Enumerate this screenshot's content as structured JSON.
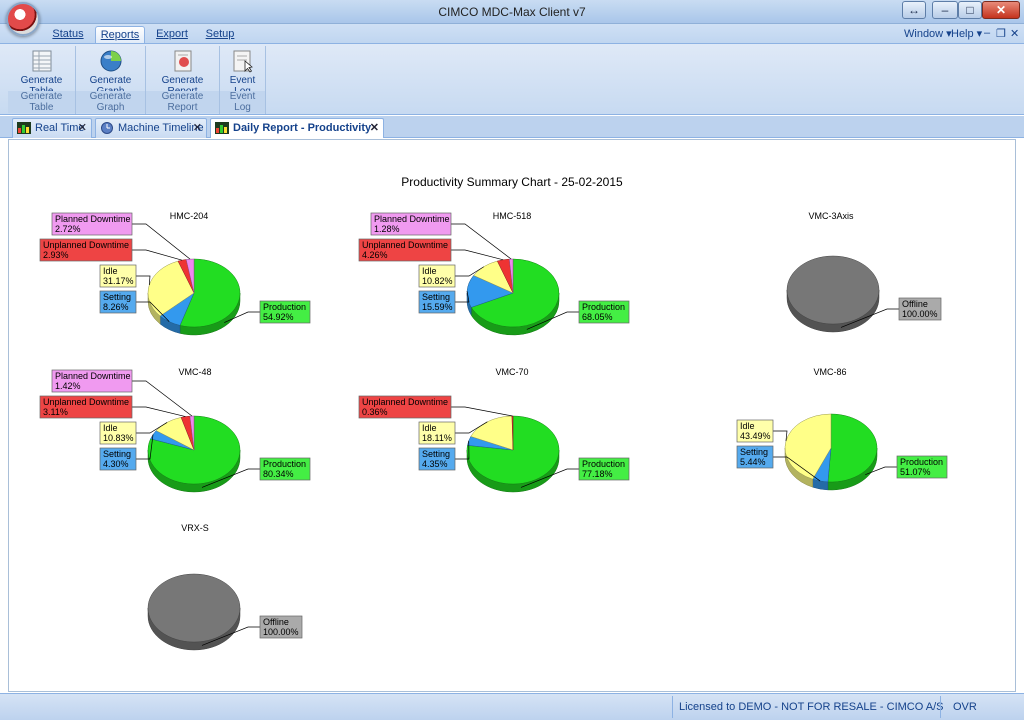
{
  "window": {
    "title": "CIMCO MDC-Max Client v7"
  },
  "ribbon_tabs": [
    {
      "label": "Status"
    },
    {
      "label": "Reports"
    },
    {
      "label": "Export"
    },
    {
      "label": "Setup"
    }
  ],
  "menus": {
    "window": "Window",
    "help": "Help"
  },
  "ribbon_groups": [
    {
      "button_line1": "Generate",
      "button_line2": "Table",
      "group_label": "Generate Table"
    },
    {
      "button_line1": "Generate",
      "button_line2": "Graph",
      "group_label": "Generate Graph"
    },
    {
      "button_line1": "Generate",
      "button_line2": "Report",
      "group_label": "Generate Report"
    },
    {
      "button_line1": "Event",
      "button_line2": "Log",
      "group_label": "Event Log"
    }
  ],
  "doc_tabs": [
    {
      "label": "Real Time"
    },
    {
      "label": "Machine Timeline"
    },
    {
      "label": "Daily Report - Productivity S..."
    }
  ],
  "colors": {
    "production": "#22dd22",
    "setting": "#3399ee",
    "idle": "#ffff88",
    "unplanned": "#ee3333",
    "planned": "#ee88ee",
    "offline": "#777777"
  },
  "chart_data": {
    "type": "pie",
    "title": "Productivity Summary Chart  -  25-02-2015",
    "charts": [
      {
        "name": "HMC-204",
        "slices": [
          {
            "label": "Production",
            "value": "54.92%",
            "pct": 54.92,
            "cat": "production"
          },
          {
            "label": "Setting",
            "value": "8.26%",
            "pct": 8.26,
            "cat": "setting"
          },
          {
            "label": "Idle",
            "value": "31.17%",
            "pct": 31.17,
            "cat": "idle"
          },
          {
            "label": "Unplanned Downtime",
            "value": "2.93%",
            "pct": 2.93,
            "cat": "unplanned"
          },
          {
            "label": "Planned Downtime",
            "value": "2.72%",
            "pct": 2.72,
            "cat": "planned"
          }
        ]
      },
      {
        "name": "HMC-518",
        "slices": [
          {
            "label": "Production",
            "value": "68.05%",
            "pct": 68.05,
            "cat": "production"
          },
          {
            "label": "Setting",
            "value": "15.59%",
            "pct": 15.59,
            "cat": "setting"
          },
          {
            "label": "Idle",
            "value": "10.82%",
            "pct": 10.82,
            "cat": "idle"
          },
          {
            "label": "Unplanned Downtime",
            "value": "4.26%",
            "pct": 4.26,
            "cat": "unplanned"
          },
          {
            "label": "Planned Downtime",
            "value": "1.28%",
            "pct": 1.28,
            "cat": "planned"
          }
        ]
      },
      {
        "name": "VMC-3Axis",
        "slices": [
          {
            "label": "Offline",
            "value": "100.00%",
            "pct": 100,
            "cat": "offline"
          }
        ]
      },
      {
        "name": "VMC-48",
        "slices": [
          {
            "label": "Production",
            "value": "80.34%",
            "pct": 80.34,
            "cat": "production"
          },
          {
            "label": "Setting",
            "value": "4.30%",
            "pct": 4.3,
            "cat": "setting"
          },
          {
            "label": "Idle",
            "value": "10.83%",
            "pct": 10.83,
            "cat": "idle"
          },
          {
            "label": "Unplanned Downtime",
            "value": "3.11%",
            "pct": 3.11,
            "cat": "unplanned"
          },
          {
            "label": "Planned Downtime",
            "value": "1.42%",
            "pct": 1.42,
            "cat": "planned"
          }
        ]
      },
      {
        "name": "VMC-70",
        "slices": [
          {
            "label": "Production",
            "value": "77.18%",
            "pct": 77.18,
            "cat": "production"
          },
          {
            "label": "Setting",
            "value": "4.35%",
            "pct": 4.35,
            "cat": "setting"
          },
          {
            "label": "Idle",
            "value": "18.11%",
            "pct": 18.11,
            "cat": "idle"
          },
          {
            "label": "Unplanned Downtime",
            "value": "0.36%",
            "pct": 0.36,
            "cat": "unplanned"
          }
        ]
      },
      {
        "name": "VMC-86",
        "slices": [
          {
            "label": "Production",
            "value": "51.07%",
            "pct": 51.07,
            "cat": "production"
          },
          {
            "label": "Setting",
            "value": "5.44%",
            "pct": 5.44,
            "cat": "setting"
          },
          {
            "label": "Idle",
            "value": "43.49%",
            "pct": 43.49,
            "cat": "idle"
          }
        ]
      },
      {
        "name": "VRX-S",
        "slices": [
          {
            "label": "Offline",
            "value": "100.00%",
            "pct": 100,
            "cat": "offline"
          }
        ]
      }
    ]
  },
  "statusbar": {
    "license": "Licensed to DEMO - NOT FOR RESALE - CIMCO A/S",
    "mode": "OVR"
  }
}
